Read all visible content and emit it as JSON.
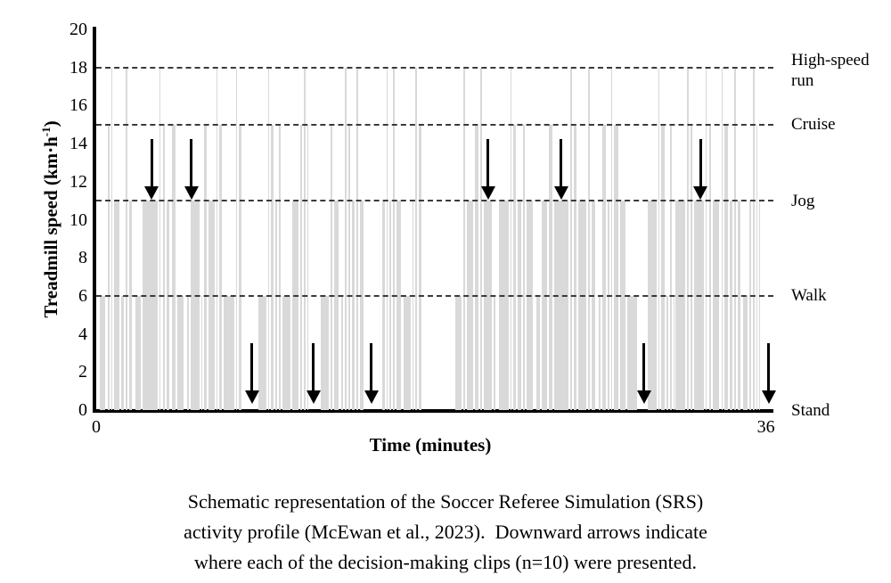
{
  "figure": {
    "caption_lines": [
      "Schematic representation of the Soccer Referee Simulation (SRS)",
      "activity profile (McEwan et al., 2023).  Downward arrows indicate",
      "where each of the decision-making clips (n=10) were presented."
    ]
  },
  "chart_data": {
    "type": "bar",
    "title": "",
    "xlabel": "Time (minutes)",
    "ylabel_prefix": "Treadmill speed (km·h",
    "ylabel_sup": "-1",
    "ylabel_suffix": ")",
    "xlim": [
      0,
      36
    ],
    "ylim": [
      0,
      20
    ],
    "x_ticks": [
      {
        "t": 0,
        "label": "0"
      },
      {
        "t": 36,
        "label": "36"
      }
    ],
    "y_ticks": [
      0,
      2,
      4,
      6,
      8,
      10,
      12,
      14,
      16,
      18,
      20
    ],
    "grid": false,
    "legend": "none",
    "bar_color": "#d9d9d9",
    "dash_color": "#3a3a3a",
    "arrow_color": "#000000",
    "axis_color": "#000000",
    "speed_zones": [
      {
        "value": 18,
        "dashed": true,
        "label": "High-speed run",
        "label_lines": [
          "High-speed",
          "run"
        ]
      },
      {
        "value": 15,
        "dashed": true,
        "label": "Cruise",
        "label_lines": [
          "Cruise"
        ]
      },
      {
        "value": 11,
        "dashed": true,
        "label": "Jog",
        "label_lines": [
          "Jog"
        ]
      },
      {
        "value": 6,
        "dashed": true,
        "label": "Walk",
        "label_lines": [
          "Walk"
        ]
      },
      {
        "value": 0,
        "dashed": false,
        "label": "Stand",
        "label_lines": [
          "Stand"
        ]
      }
    ],
    "segments_format": [
      "start_min",
      "end_min",
      "speed_kmh"
    ],
    "segments": [
      [
        0.15,
        0.55,
        6
      ],
      [
        0.55,
        0.75,
        15
      ],
      [
        0.75,
        0.9,
        18
      ],
      [
        0.9,
        1.3,
        11
      ],
      [
        1.3,
        1.55,
        6
      ],
      [
        1.55,
        1.72,
        18
      ],
      [
        1.72,
        1.95,
        11
      ],
      [
        1.95,
        2.05,
        0
      ],
      [
        2.05,
        2.45,
        6
      ],
      [
        2.45,
        3.35,
        11
      ],
      [
        3.35,
        3.52,
        18
      ],
      [
        3.52,
        3.75,
        15
      ],
      [
        3.75,
        4.0,
        11
      ],
      [
        4.0,
        4.3,
        15
      ],
      [
        4.3,
        4.75,
        6
      ],
      [
        4.75,
        4.85,
        0
      ],
      [
        4.85,
        5.05,
        6
      ],
      [
        5.05,
        5.6,
        11
      ],
      [
        5.6,
        5.75,
        6
      ],
      [
        5.75,
        6.0,
        15
      ],
      [
        6.0,
        6.4,
        11
      ],
      [
        6.4,
        6.57,
        18
      ],
      [
        6.57,
        6.8,
        15
      ],
      [
        6.8,
        7.45,
        6
      ],
      [
        7.45,
        7.6,
        18
      ],
      [
        7.6,
        7.85,
        15
      ],
      [
        7.85,
        8.65,
        0
      ],
      [
        8.65,
        9.2,
        6
      ],
      [
        9.2,
        9.36,
        18
      ],
      [
        9.36,
        9.6,
        15
      ],
      [
        9.6,
        9.75,
        11
      ],
      [
        9.75,
        9.95,
        15
      ],
      [
        9.95,
        10.5,
        6
      ],
      [
        10.5,
        10.9,
        11
      ],
      [
        10.9,
        11.1,
        15
      ],
      [
        11.1,
        11.28,
        18
      ],
      [
        11.28,
        11.4,
        15
      ],
      [
        11.4,
        12.0,
        0
      ],
      [
        12.0,
        12.55,
        6
      ],
      [
        12.55,
        12.75,
        15
      ],
      [
        12.75,
        13.1,
        11
      ],
      [
        13.1,
        13.3,
        6
      ],
      [
        13.3,
        13.5,
        18
      ],
      [
        13.5,
        13.7,
        15
      ],
      [
        13.7,
        13.95,
        11
      ],
      [
        13.95,
        14.12,
        18
      ],
      [
        14.12,
        14.4,
        11
      ],
      [
        14.4,
        15.3,
        0
      ],
      [
        15.3,
        15.55,
        11
      ],
      [
        15.55,
        15.7,
        18
      ],
      [
        15.7,
        15.9,
        11
      ],
      [
        15.9,
        16.08,
        18
      ],
      [
        16.08,
        16.45,
        11
      ],
      [
        16.45,
        16.95,
        6
      ],
      [
        16.95,
        17.1,
        11
      ],
      [
        17.1,
        17.28,
        18
      ],
      [
        17.28,
        17.55,
        15
      ],
      [
        17.55,
        19.25,
        0
      ],
      [
        19.25,
        19.7,
        6
      ],
      [
        19.7,
        19.88,
        18
      ],
      [
        19.88,
        20.3,
        11
      ],
      [
        20.3,
        20.6,
        15
      ],
      [
        20.6,
        20.78,
        18
      ],
      [
        20.78,
        21.3,
        11
      ],
      [
        21.3,
        21.5,
        6
      ],
      [
        21.5,
        21.6,
        0
      ],
      [
        21.6,
        22.2,
        11
      ],
      [
        22.2,
        22.38,
        18
      ],
      [
        22.38,
        22.6,
        15
      ],
      [
        22.6,
        22.9,
        11
      ],
      [
        22.9,
        23.1,
        15
      ],
      [
        23.1,
        23.5,
        11
      ],
      [
        23.5,
        23.6,
        0
      ],
      [
        23.6,
        23.9,
        6
      ],
      [
        23.9,
        24.3,
        11
      ],
      [
        24.3,
        24.55,
        15
      ],
      [
        24.55,
        25.45,
        11
      ],
      [
        25.45,
        25.62,
        18
      ],
      [
        25.62,
        25.85,
        15
      ],
      [
        25.85,
        26.4,
        11
      ],
      [
        26.4,
        26.58,
        18
      ],
      [
        26.58,
        26.85,
        11
      ],
      [
        26.85,
        26.95,
        0
      ],
      [
        26.95,
        27.15,
        6
      ],
      [
        27.15,
        27.45,
        15
      ],
      [
        27.45,
        27.62,
        11
      ],
      [
        27.62,
        27.8,
        18
      ],
      [
        27.8,
        28.1,
        15
      ],
      [
        28.1,
        28.5,
        11
      ],
      [
        28.5,
        29.1,
        6
      ],
      [
        29.1,
        29.6,
        0
      ],
      [
        29.6,
        30.15,
        11
      ],
      [
        30.15,
        30.33,
        18
      ],
      [
        30.33,
        30.6,
        15
      ],
      [
        30.6,
        30.8,
        6
      ],
      [
        30.8,
        31.0,
        15
      ],
      [
        31.0,
        31.1,
        6
      ],
      [
        31.1,
        31.7,
        11
      ],
      [
        31.7,
        31.88,
        18
      ],
      [
        31.88,
        32.1,
        15
      ],
      [
        32.1,
        32.7,
        11
      ],
      [
        32.7,
        32.88,
        18
      ],
      [
        32.88,
        33.1,
        15
      ],
      [
        33.1,
        33.55,
        11
      ],
      [
        33.55,
        33.73,
        18
      ],
      [
        33.73,
        34.0,
        15
      ],
      [
        34.0,
        34.25,
        11
      ],
      [
        34.25,
        34.43,
        18
      ],
      [
        34.43,
        34.7,
        11
      ],
      [
        34.7,
        35.05,
        6
      ],
      [
        35.05,
        35.25,
        11
      ],
      [
        35.25,
        35.43,
        18
      ],
      [
        35.43,
        35.6,
        15
      ],
      [
        35.6,
        35.75,
        11
      ],
      [
        35.75,
        36.4,
        0
      ]
    ],
    "clip_arrows": [
      {
        "t": 2.97,
        "points_to": "Jog"
      },
      {
        "t": 5.12,
        "points_to": "Jog"
      },
      {
        "t": 8.37,
        "points_to": "Stand"
      },
      {
        "t": 11.67,
        "points_to": "Stand"
      },
      {
        "t": 14.78,
        "points_to": "Stand"
      },
      {
        "t": 21.05,
        "points_to": "Jog"
      },
      {
        "t": 24.98,
        "points_to": "Jog"
      },
      {
        "t": 29.45,
        "points_to": "Stand"
      },
      {
        "t": 32.49,
        "points_to": "Jog"
      },
      {
        "t": 36.15,
        "points_to": "Stand"
      }
    ]
  }
}
